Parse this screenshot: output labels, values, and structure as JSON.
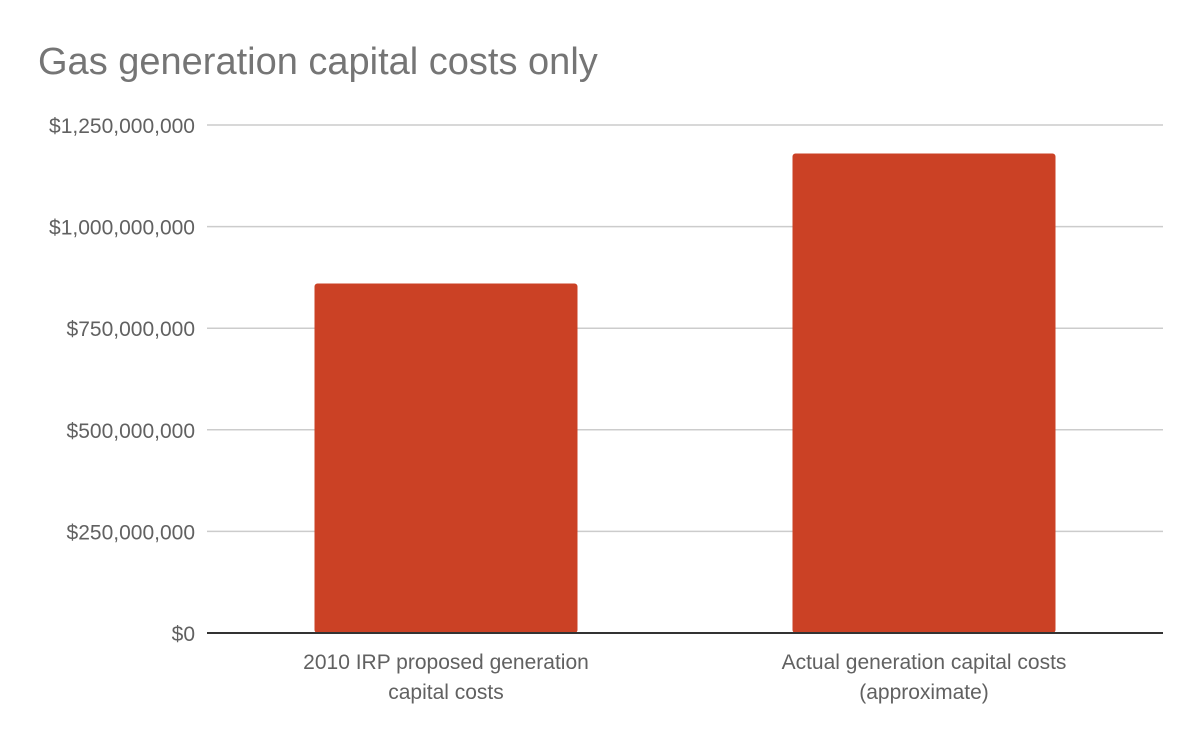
{
  "chart_data": {
    "type": "bar",
    "title": "Gas generation capital costs only",
    "categories": [
      [
        "2010 IRP proposed generation",
        "capital costs"
      ],
      [
        "Actual generation capital costs",
        "(approximate)"
      ]
    ],
    "values": [
      860000000,
      1180000000
    ],
    "ylim": [
      0,
      1250000000
    ],
    "yticks": [
      0,
      250000000,
      500000000,
      750000000,
      1000000000,
      1250000000
    ],
    "ytick_labels": [
      "$0",
      "$250,000,000",
      "$500,000,000",
      "$750,000,000",
      "$1,000,000,000",
      "$1,250,000,000"
    ],
    "xlabel": "",
    "ylabel": "",
    "grid": true,
    "legend": "none",
    "colors": {
      "bar": "#cb4125",
      "grid": "#cccccc",
      "baseline": "#333333",
      "title": "#757575",
      "tick_text": "#616161"
    }
  }
}
